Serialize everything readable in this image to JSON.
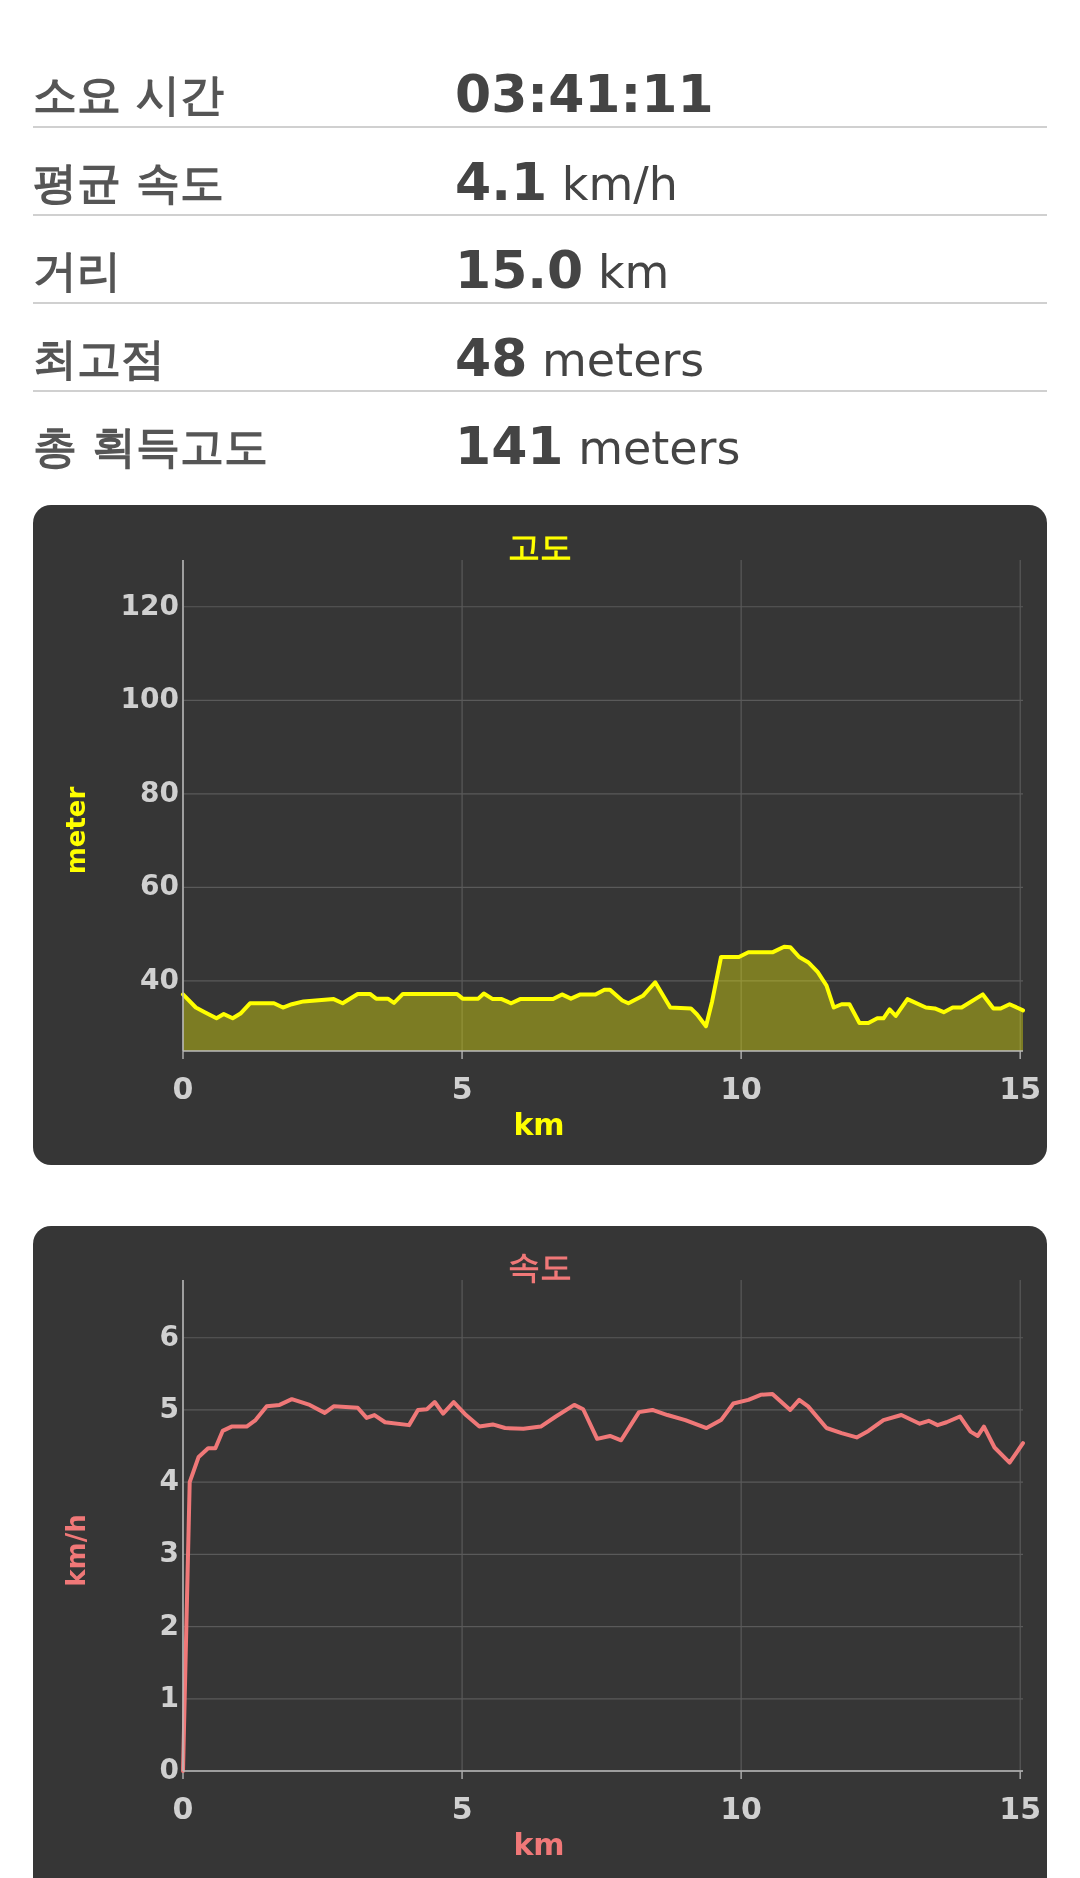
{
  "chart_data": [
    {
      "type": "other",
      "annotations": [
        "소요 시간",
        "03:41:11",
        "평균 속도",
        "4.1 km/h",
        "거리",
        "15.0 km",
        "최고점",
        "48 meters",
        "총 획득고도",
        "141 meters"
      ]
    },
    {
      "type": "area",
      "title": "고도",
      "xlabel": "km",
      "ylabel": "meter",
      "color": "#ffff00",
      "grid": true,
      "xlim": [
        0,
        15.05
      ],
      "xticks": [
        0,
        5,
        10,
        15
      ],
      "ylim": [
        25,
        130
      ],
      "yticks": [
        40,
        60,
        80,
        100,
        120
      ],
      "x": [
        0,
        0.23,
        0.39,
        0.6,
        0.73,
        0.89,
        1.03,
        1.2,
        1.63,
        1.79,
        1.95,
        2.16,
        2.7,
        2.86,
        3.13,
        3.35,
        3.46,
        3.67,
        3.78,
        3.94,
        4.91,
        5.01,
        5.29,
        5.39,
        5.55,
        5.71,
        5.88,
        6.04,
        6.63,
        6.79,
        6.95,
        7.12,
        7.39,
        7.55,
        7.65,
        7.87,
        7.98,
        8.24,
        8.46,
        8.73,
        9.1,
        9.21,
        9.37,
        9.48,
        9.64,
        9.96,
        10.13,
        10.56,
        10.77,
        10.88,
        11.04,
        11.2,
        11.37,
        11.53,
        11.66,
        11.8,
        11.94,
        12.12,
        12.28,
        12.44,
        12.55,
        12.66,
        12.77,
        12.98,
        13.31,
        13.47,
        13.63,
        13.79,
        13.95,
        14.33,
        14.52,
        14.65,
        14.81,
        15.05
      ],
      "values": [
        37.1,
        34.3,
        33.3,
        32,
        32.9,
        32,
        33,
        35.2,
        35.2,
        34.3,
        35,
        35.6,
        36.1,
        35.2,
        37.2,
        37.2,
        36.2,
        36.2,
        35.3,
        37.2,
        37.2,
        36.2,
        36.2,
        37.3,
        36.1,
        36.1,
        35.2,
        36.1,
        36.1,
        37.1,
        36.2,
        37.1,
        37.1,
        38.1,
        38.1,
        35.8,
        35.2,
        36.8,
        39.7,
        34.3,
        34.1,
        32.8,
        30.3,
        35.6,
        45.1,
        45.1,
        46.1,
        46.1,
        47.3,
        47.2,
        45.1,
        44,
        41.9,
        39,
        34.3,
        35,
        35,
        31,
        31,
        32,
        32,
        33.9,
        32.5,
        36.1,
        34.3,
        34.1,
        33.3,
        34.3,
        34.3,
        37.1,
        34.1,
        34.1,
        35,
        33.7
      ]
    },
    {
      "type": "line",
      "title": "속도",
      "xlabel": "km",
      "ylabel": "km/h",
      "color": "#f07878",
      "grid": true,
      "xlim": [
        0,
        15.05
      ],
      "xticks": [
        0,
        5,
        10,
        15
      ],
      "ylim": [
        0,
        6.8
      ],
      "yticks": [
        0,
        1,
        2,
        3,
        4,
        5,
        6
      ],
      "x": [
        0,
        0.12,
        0.28,
        0.45,
        0.58,
        0.71,
        0.87,
        1.14,
        1.3,
        1.5,
        1.73,
        1.95,
        2.27,
        2.54,
        2.7,
        3.13,
        3.29,
        3.43,
        3.62,
        4.05,
        4.21,
        4.37,
        4.51,
        4.66,
        4.85,
        5.07,
        5.31,
        5.55,
        5.77,
        6.1,
        6.41,
        6.68,
        7.01,
        7.17,
        7.42,
        7.65,
        7.85,
        8.17,
        8.41,
        8.68,
        9.0,
        9.38,
        9.64,
        9.86,
        10.13,
        10.35,
        10.56,
        10.88,
        11.04,
        11.2,
        11.53,
        11.8,
        12.07,
        12.28,
        12.55,
        12.87,
        13.2,
        13.36,
        13.52,
        13.68,
        13.92,
        14.11,
        14.24,
        14.35,
        14.54,
        14.81,
        15.05
      ],
      "values": [
        0,
        4.0,
        4.35,
        4.47,
        4.47,
        4.71,
        4.77,
        4.77,
        4.86,
        5.05,
        5.07,
        5.15,
        5.07,
        4.96,
        5.05,
        5.03,
        4.89,
        4.93,
        4.83,
        4.79,
        5.0,
        5.01,
        5.11,
        4.95,
        5.11,
        4.93,
        4.77,
        4.8,
        4.75,
        4.74,
        4.77,
        4.91,
        5.07,
        5.01,
        4.6,
        4.64,
        4.58,
        4.97,
        5.0,
        4.93,
        4.86,
        4.75,
        4.86,
        5.09,
        5.14,
        5.21,
        5.22,
        5.0,
        5.14,
        5.05,
        4.75,
        4.68,
        4.62,
        4.71,
        4.86,
        4.93,
        4.81,
        4.85,
        4.79,
        4.83,
        4.91,
        4.7,
        4.64,
        4.77,
        4.48,
        4.27,
        4.54
      ]
    }
  ]
}
